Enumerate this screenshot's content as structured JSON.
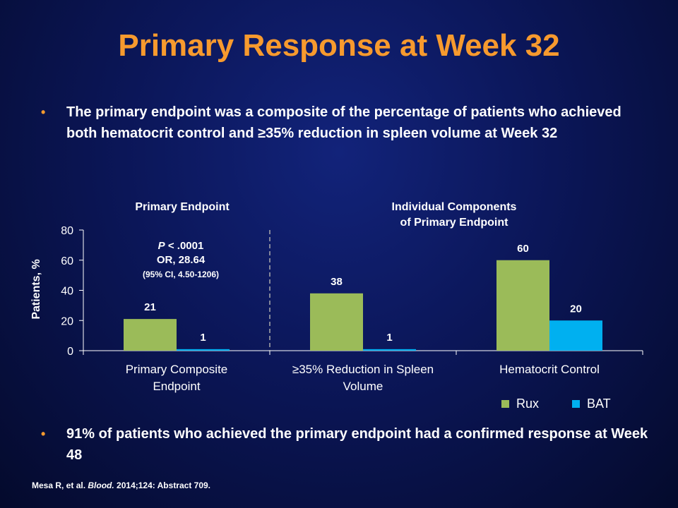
{
  "slide": {
    "title": "Primary Response at Week 32",
    "bullet1": "The primary endpoint was a composite of the percentage of patients who achieved both hematocrit control and ≥35%  reduction in spleen volume at Week 32",
    "bullet2": "91%  of patients who achieved the primary endpoint had a confirmed response at Week 48",
    "bullet_marker": "•",
    "citation_authors": "Mesa R, et al.",
    "citation_journal": "Blood.",
    "citation_rest": "2014;124: Abstract 709."
  },
  "panels": {
    "primary_title": "Primary Endpoint",
    "components_title_line1": "Individual Components",
    "components_title_line2": "of Primary Endpoint"
  },
  "annotation": {
    "p_label": "P",
    "p_value": " < .0001",
    "or_text": "OR, 28.64",
    "ci_text": "(95% CI, 4.50-1206)"
  },
  "chart_data": {
    "type": "bar",
    "categories": [
      [
        "Primary Composite",
        "Endpoint"
      ],
      [
        "≥35% Reduction in Spleen",
        "Volume"
      ],
      [
        "Hematocrit Control"
      ]
    ],
    "series": [
      {
        "name": "Rux",
        "values": [
          21,
          38,
          60
        ],
        "color": "#9bbb59"
      },
      {
        "name": "BAT",
        "values": [
          1,
          1,
          20
        ],
        "color": "#00b0f0"
      }
    ],
    "ylabel": "Patients, %",
    "ylim": [
      0,
      80
    ],
    "yticks": [
      0,
      20,
      40,
      60,
      80
    ],
    "data_labels": true,
    "grid": false,
    "legend_position": "bottom-right",
    "divider_after_category": 0
  }
}
